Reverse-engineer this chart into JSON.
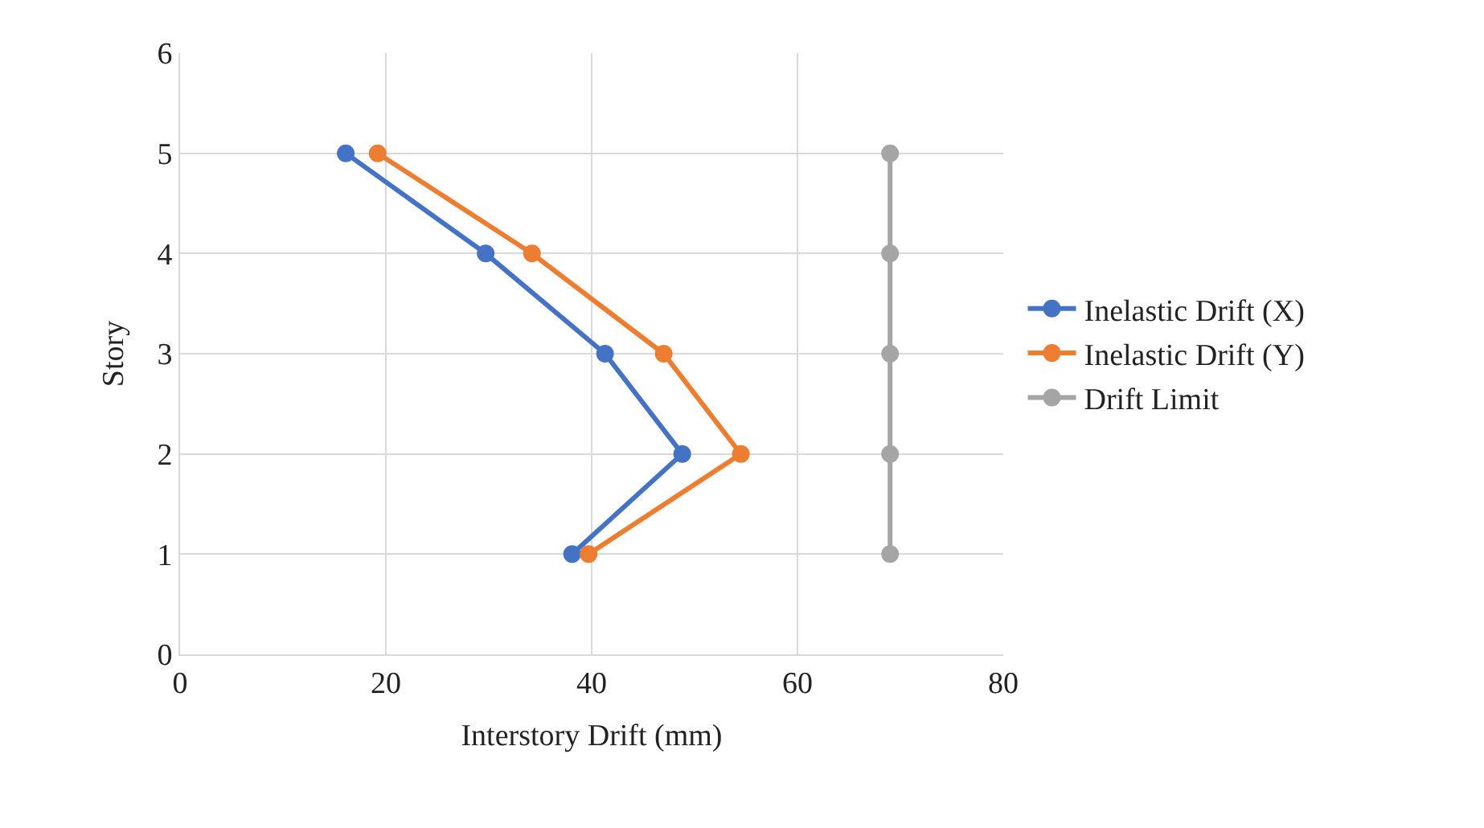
{
  "chart_data": {
    "type": "line",
    "xlabel": "Interstory Drift (mm)",
    "ylabel": "Story",
    "series": [
      {
        "name": "Inelastic Drift (X)",
        "color": "#4472c4",
        "x": [
          16.1,
          29.7,
          41.3,
          48.8,
          38.1
        ],
        "values": [
          5,
          4,
          3,
          2,
          1
        ]
      },
      {
        "name": "Inelastic Drift (Y)",
        "color": "#ed7d31",
        "x": [
          19.2,
          34.2,
          47.0,
          54.5,
          39.7
        ],
        "values": [
          5,
          4,
          3,
          2,
          1
        ]
      },
      {
        "name": "Drift Limit",
        "color": "#a5a5a5",
        "x": [
          69,
          69,
          69,
          69,
          69
        ],
        "values": [
          5,
          4,
          3,
          2,
          1
        ]
      }
    ],
    "xlim": [
      0,
      80
    ],
    "xticks": [
      0,
      20,
      40,
      60,
      80
    ],
    "ylim": [
      0,
      6
    ],
    "yticks": [
      0,
      1,
      2,
      3,
      4,
      5,
      6
    ],
    "grid": true,
    "legend": "right",
    "marker": "circle",
    "line_style": "solid"
  }
}
